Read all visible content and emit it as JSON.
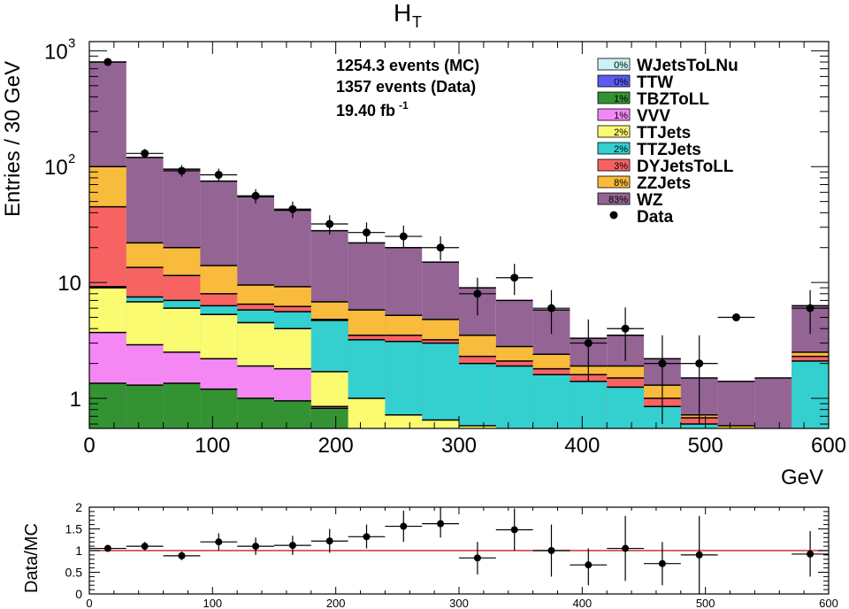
{
  "chart_data": [
    {
      "type": "area",
      "stacked": true,
      "log_scale_y": true,
      "title": "H",
      "title_subscript": "T",
      "xlabel": "GeV",
      "ylabel": "Entries / 30 GeV",
      "xlim": [
        0,
        600
      ],
      "ylim": [
        0.55,
        1200
      ],
      "x_ticks": [
        "0",
        "100",
        "200",
        "300",
        "400",
        "500",
        "600"
      ],
      "y_tick_labels": {
        "one": "1",
        "ten": "10",
        "hundred_base": "10",
        "hundred_exp": "2",
        "thousand_base": "10",
        "thousand_exp": "3"
      },
      "bin_edges": [
        0,
        30,
        60,
        90,
        120,
        150,
        180,
        210,
        240,
        270,
        300,
        330,
        360,
        390,
        420,
        450,
        480,
        510,
        540,
        570,
        600
      ],
      "annotations": {
        "mc_events": "1254.3 events (MC)",
        "data_events": "1357 events (Data)",
        "lumi": "19.40 fb",
        "lumi_exp": "-1"
      },
      "legend_position": "top-right",
      "series": [
        {
          "name": "WZ",
          "pct": "83%",
          "color": "#946494",
          "cumulative": [
            800,
            120,
            95,
            75,
            55,
            42,
            28,
            22,
            20,
            15,
            9,
            7,
            5.8,
            3.3,
            3.5,
            2.2,
            1.5,
            1.4,
            1.5,
            6.3
          ]
        },
        {
          "name": "ZZJets",
          "pct": "8%",
          "color": "#f9bb3b",
          "cumulative": [
            100,
            22,
            20,
            14,
            9.5,
            9.2,
            6.8,
            5.8,
            5.2,
            4.8,
            3.5,
            2.8,
            2.4,
            1.9,
            1.9,
            1.3,
            0.72,
            0.58,
            0,
            2.5
          ]
        },
        {
          "name": "DYJetsToLL",
          "pct": "3%",
          "color": "#f76363",
          "cumulative": [
            45,
            13.5,
            11.5,
            8.0,
            6.5,
            6.2,
            4.8,
            3.5,
            3.5,
            3.2,
            2.3,
            2.1,
            1.8,
            1.6,
            1.5,
            1.0,
            0.68,
            0.55,
            0,
            2.3
          ]
        },
        {
          "name": "TTZJets",
          "pct": "2%",
          "color": "#34cfcf",
          "cumulative": [
            9.2,
            7.5,
            7.0,
            6.3,
            5.8,
            5.6,
            4.7,
            3.2,
            3.1,
            3.0,
            2.0,
            1.9,
            1.6,
            1.4,
            1.25,
            0.85,
            0.6,
            0.5,
            0,
            2.1
          ]
        },
        {
          "name": "TTJets",
          "pct": "2%",
          "color": "#fbfb72",
          "cumulative": [
            9.0,
            6.8,
            6.0,
            5.3,
            4.5,
            4.0,
            1.7,
            1.0,
            0.72,
            0.65,
            0.58,
            0,
            0,
            0,
            0,
            0,
            0,
            0,
            0,
            0
          ]
        },
        {
          "name": "VVV",
          "pct": "1%",
          "color": "#f587f5",
          "cumulative": [
            3.7,
            2.9,
            2.5,
            2.2,
            1.9,
            1.8,
            0.85,
            0.55,
            0,
            0,
            0,
            0,
            0,
            0,
            0,
            0,
            0,
            0,
            0,
            0
          ]
        },
        {
          "name": "TBZToLL",
          "pct": "1%",
          "color": "#339333",
          "cumulative": [
            1.35,
            1.3,
            1.35,
            1.2,
            1.0,
            0.95,
            0.82,
            0.55,
            0,
            0,
            0,
            0,
            0,
            0,
            0,
            0,
            0,
            0,
            0,
            0
          ]
        },
        {
          "name": "TTW",
          "pct": "0%",
          "color": "#5b5bf1",
          "cumulative": [
            0,
            0,
            0,
            0,
            0,
            0,
            0,
            0,
            0,
            0,
            0,
            0,
            0,
            0,
            0,
            0,
            0,
            0,
            0,
            0
          ]
        },
        {
          "name": "WJetsToLNu",
          "pct": "0%",
          "color": "#c9f4f5",
          "cumulative": [
            0,
            0,
            0,
            0,
            0,
            0,
            0,
            0,
            0,
            0,
            0,
            0,
            0,
            0,
            0,
            0,
            0,
            0,
            0,
            0
          ]
        }
      ],
      "data": {
        "name": "Data",
        "points": [
          {
            "x": 15,
            "y": 800,
            "ylo": 770,
            "yhi": 830
          },
          {
            "x": 45,
            "y": 130,
            "ylo": 118,
            "yhi": 142
          },
          {
            "x": 75,
            "y": 92,
            "ylo": 82,
            "yhi": 103
          },
          {
            "x": 105,
            "y": 85,
            "ylo": 75,
            "yhi": 96
          },
          {
            "x": 135,
            "y": 56,
            "ylo": 48,
            "yhi": 64
          },
          {
            "x": 165,
            "y": 43,
            "ylo": 36,
            "yhi": 50
          },
          {
            "x": 195,
            "y": 32,
            "ylo": 26,
            "yhi": 38
          },
          {
            "x": 225,
            "y": 27,
            "ylo": 22,
            "yhi": 33
          },
          {
            "x": 255,
            "y": 25,
            "ylo": 20,
            "yhi": 31
          },
          {
            "x": 285,
            "y": 20,
            "ylo": 15.5,
            "yhi": 25
          },
          {
            "x": 315,
            "y": 8,
            "ylo": 5.2,
            "yhi": 11
          },
          {
            "x": 345,
            "y": 11,
            "ylo": 7.8,
            "yhi": 14.5
          },
          {
            "x": 375,
            "y": 6,
            "ylo": 3.6,
            "yhi": 8.6
          },
          {
            "x": 405,
            "y": 3,
            "ylo": 1.4,
            "yhi": 4.8
          },
          {
            "x": 435,
            "y": 4,
            "ylo": 2.1,
            "yhi": 6.1
          },
          {
            "x": 465,
            "y": 2,
            "ylo": 0.6,
            "yhi": 3.5
          },
          {
            "x": 495,
            "y": 2,
            "ylo": 0.6,
            "yhi": 3.5
          },
          {
            "x": 525,
            "y": 5,
            "ylo": 5,
            "yhi": 5
          },
          {
            "x": 585,
            "y": 6,
            "ylo": 3.6,
            "yhi": 8.6
          }
        ]
      }
    },
    {
      "type": "scatter",
      "ylabel": "Data/MC",
      "xlim": [
        0,
        600
      ],
      "ylim": [
        0,
        2
      ],
      "x_ticks": [
        "0",
        "100",
        "200",
        "300",
        "400",
        "500",
        "600"
      ],
      "y_ticks": [
        "0",
        "0.5",
        "1",
        "1.5",
        "2"
      ],
      "reference_line": 1,
      "points": [
        {
          "x": 15,
          "y": 1.05,
          "ylo": 1.02,
          "yhi": 1.08
        },
        {
          "x": 45,
          "y": 1.1,
          "ylo": 1.0,
          "yhi": 1.2
        },
        {
          "x": 75,
          "y": 0.88,
          "ylo": 0.78,
          "yhi": 0.98
        },
        {
          "x": 105,
          "y": 1.2,
          "ylo": 1.0,
          "yhi": 1.4
        },
        {
          "x": 135,
          "y": 1.1,
          "ylo": 0.9,
          "yhi": 1.3
        },
        {
          "x": 165,
          "y": 1.12,
          "ylo": 0.9,
          "yhi": 1.34
        },
        {
          "x": 195,
          "y": 1.22,
          "ylo": 0.95,
          "yhi": 1.5
        },
        {
          "x": 225,
          "y": 1.32,
          "ylo": 1.05,
          "yhi": 1.6
        },
        {
          "x": 255,
          "y": 1.56,
          "ylo": 1.2,
          "yhi": 1.92
        },
        {
          "x": 285,
          "y": 1.62,
          "ylo": 1.3,
          "yhi": 2.0
        },
        {
          "x": 315,
          "y": 0.83,
          "ylo": 0.45,
          "yhi": 1.2
        },
        {
          "x": 345,
          "y": 1.48,
          "ylo": 1.0,
          "yhi": 1.97
        },
        {
          "x": 375,
          "y": 1.0,
          "ylo": 0.4,
          "yhi": 1.6
        },
        {
          "x": 405,
          "y": 0.67,
          "ylo": 0.2,
          "yhi": 1.05
        },
        {
          "x": 435,
          "y": 1.05,
          "ylo": 0.3,
          "yhi": 1.8
        },
        {
          "x": 465,
          "y": 0.7,
          "ylo": 0.2,
          "yhi": 1.2
        },
        {
          "x": 495,
          "y": 0.9,
          "ylo": 0.0,
          "yhi": 1.8
        },
        {
          "x": 585,
          "y": 0.92,
          "ylo": 0.4,
          "yhi": 1.45
        }
      ]
    }
  ],
  "colors": {
    "axis": "#000000",
    "reference_line": "#cc3333"
  }
}
